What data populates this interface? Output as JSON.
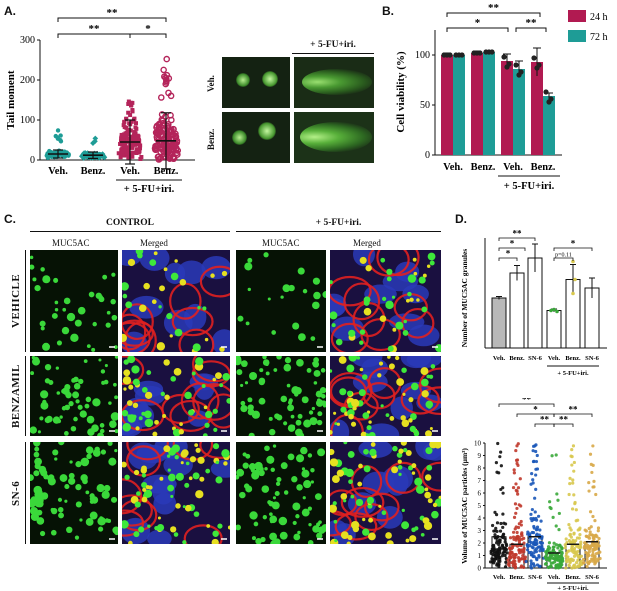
{
  "panels": {
    "a": "A.",
    "b": "B.",
    "c": "C.",
    "d": "D."
  },
  "colors": {
    "teal": "#1e9c96",
    "crimson": "#b11a51",
    "magenta": "#b4245a",
    "gold": "#d8c84e",
    "gray": "#9a9a9a"
  },
  "chart_data": [
    {
      "type": "scatter",
      "panel": "A",
      "ylabel": "Tail moment",
      "ylim": [
        0,
        300
      ],
      "yticks": [
        "0",
        "100",
        "200",
        "300"
      ],
      "categories": [
        "Veh.",
        "Benz.",
        "Veh.",
        "Benz."
      ],
      "group_label": "+ 5-FU+iri.",
      "mean": [
        15,
        12,
        45,
        48
      ],
      "sd": [
        10,
        8,
        55,
        70
      ],
      "max": [
        75,
        60,
        150,
        260
      ],
      "point_colors": [
        "#1e9c96",
        "#1e9c96",
        "#b4245a",
        "#b4245a"
      ],
      "significance": [
        {
          "from": 0,
          "to": 3,
          "label": "**"
        },
        {
          "from": 0,
          "to": 2,
          "label": "**"
        },
        {
          "from": 2,
          "to": 3,
          "label": "*"
        }
      ]
    },
    {
      "type": "bar",
      "panel": "B",
      "ylabel": "Cell viability (%)",
      "ylim": [
        0,
        125
      ],
      "yticks": [
        "0",
        "50",
        "100"
      ],
      "categories": [
        "Veh.",
        "Benz.",
        "Veh.",
        "Benz."
      ],
      "group_label": "+ 5-FU+iri.",
      "series": [
        {
          "name": "24 h",
          "color": "#b11a51",
          "values": [
            100,
            102,
            94,
            93
          ],
          "err": [
            2,
            2,
            7,
            14
          ]
        },
        {
          "name": "72 h",
          "color": "#1e9c96",
          "values": [
            100,
            103,
            86,
            59
          ],
          "err": [
            1,
            1,
            8,
            3
          ]
        }
      ],
      "legend": "top-right",
      "significance": [
        {
          "label": "*"
        },
        {
          "label": "**"
        },
        {
          "label": "**"
        }
      ]
    },
    {
      "type": "bar",
      "panel": "D-top",
      "ylabel": "Number of MUC5AC granules",
      "categories": [
        "Veh.",
        "Benz.",
        "SN-6",
        "Veh.",
        "Benz.",
        "SN-6"
      ],
      "group_label": "+ 5-FU+iri.",
      "values": [
        100,
        150,
        180,
        75,
        137,
        120
      ],
      "err": [
        3,
        15,
        28,
        3,
        30,
        20
      ],
      "significance": [
        {
          "label": "**"
        },
        {
          "label": "*"
        },
        {
          "label": "*"
        },
        {
          "label": "p=0.11"
        },
        {
          "label": "*"
        }
      ]
    },
    {
      "type": "scatter",
      "panel": "D-bottom",
      "ylabel": "Volume of MUC5AC particles (µm³)",
      "ylim": [
        0,
        10
      ],
      "yticks": [
        "0",
        "1",
        "2",
        "3",
        "4",
        "5",
        "6",
        "7",
        "8",
        "9",
        "10"
      ],
      "categories": [
        "Veh.",
        "Benz.",
        "SN-6",
        "Veh.",
        "Benz.",
        "SN-6"
      ],
      "group_label": "+ 5-FU+iri.",
      "mean": [
        2.5,
        1.9,
        2.5,
        1.2,
        1.9,
        2.1
      ],
      "point_colors": [
        "#111111",
        "#c0392b",
        "#1a56b8",
        "#3aa83a",
        "#d8c84e",
        "#d8a848"
      ],
      "significance": [
        {
          "label": "**"
        },
        {
          "label": "*"
        },
        {
          "label": "**"
        },
        {
          "label": "**"
        },
        {
          "label": "**"
        }
      ]
    }
  ],
  "comet": {
    "header": "+ 5-FU+iri.",
    "rows": [
      "Veh.",
      "Benz."
    ]
  },
  "microscopy": {
    "group_control": "CONTROL",
    "group_treated": "+ 5-FU+iri.",
    "col_muc": "MUC5AC",
    "col_merged": "Merged",
    "rows": [
      "VEHICLE",
      "BENZAMIL",
      "SN-6"
    ]
  }
}
